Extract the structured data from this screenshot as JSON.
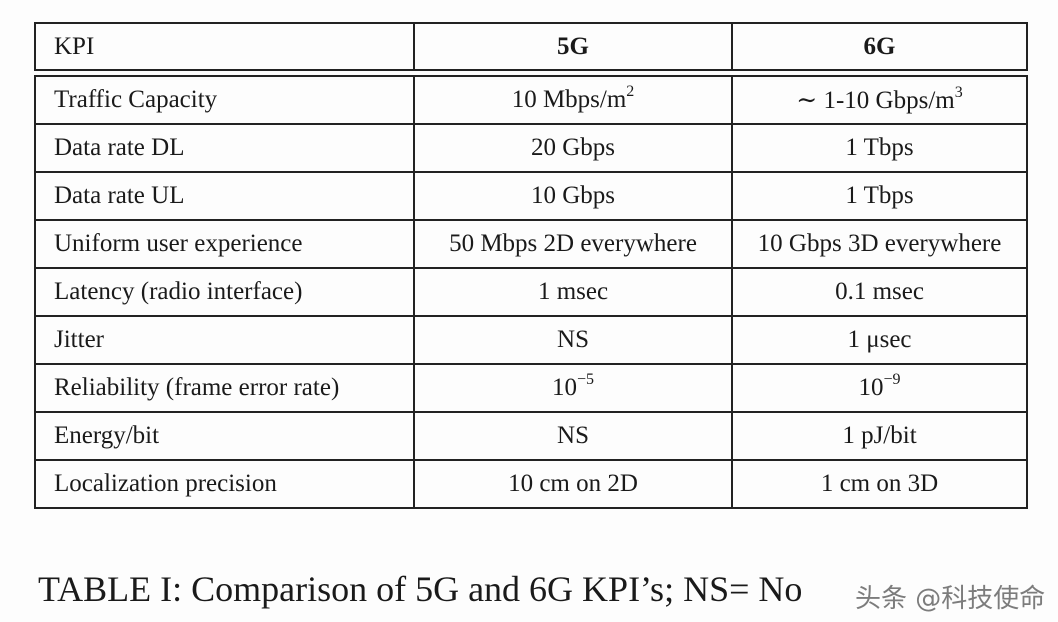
{
  "table": {
    "headers": [
      "KPI",
      "5G",
      "6G"
    ],
    "rows": [
      {
        "kpi": "Traffic Capacity",
        "g5": "10 Mbps/m",
        "g5_sup": "2",
        "g6": "∼ 1-10 Gbps/m",
        "g6_sup": "3"
      },
      {
        "kpi": "Data rate DL",
        "g5": "20 Gbps",
        "g5_sup": "",
        "g6": "1 Tbps",
        "g6_sup": ""
      },
      {
        "kpi": "Data rate UL",
        "g5": "10 Gbps",
        "g5_sup": "",
        "g6": "1 Tbps",
        "g6_sup": ""
      },
      {
        "kpi": "Uniform user experience",
        "g5": "50 Mbps 2D everywhere",
        "g5_sup": "",
        "g6": "10 Gbps 3D everywhere",
        "g6_sup": ""
      },
      {
        "kpi": "Latency (radio interface)",
        "g5": "1 msec",
        "g5_sup": "",
        "g6": "0.1 msec",
        "g6_sup": ""
      },
      {
        "kpi": "Jitter",
        "g5": "NS",
        "g5_sup": "",
        "g6": "1 μsec",
        "g6_sup": ""
      },
      {
        "kpi": "Reliability (frame error rate)",
        "g5": "10",
        "g5_sup": "−5",
        "g6": "10",
        "g6_sup": "−9"
      },
      {
        "kpi": "Energy/bit",
        "g5": "NS",
        "g5_sup": "",
        "g6": "1 pJ/bit",
        "g6_sup": ""
      },
      {
        "kpi": "Localization precision",
        "g5": "10 cm on 2D",
        "g5_sup": "",
        "g6": "1 cm on 3D",
        "g6_sup": ""
      }
    ]
  },
  "caption": "TABLE I: Comparison of 5G and 6G KPI’s; NS= No",
  "watermark": "头条 @科技使命"
}
